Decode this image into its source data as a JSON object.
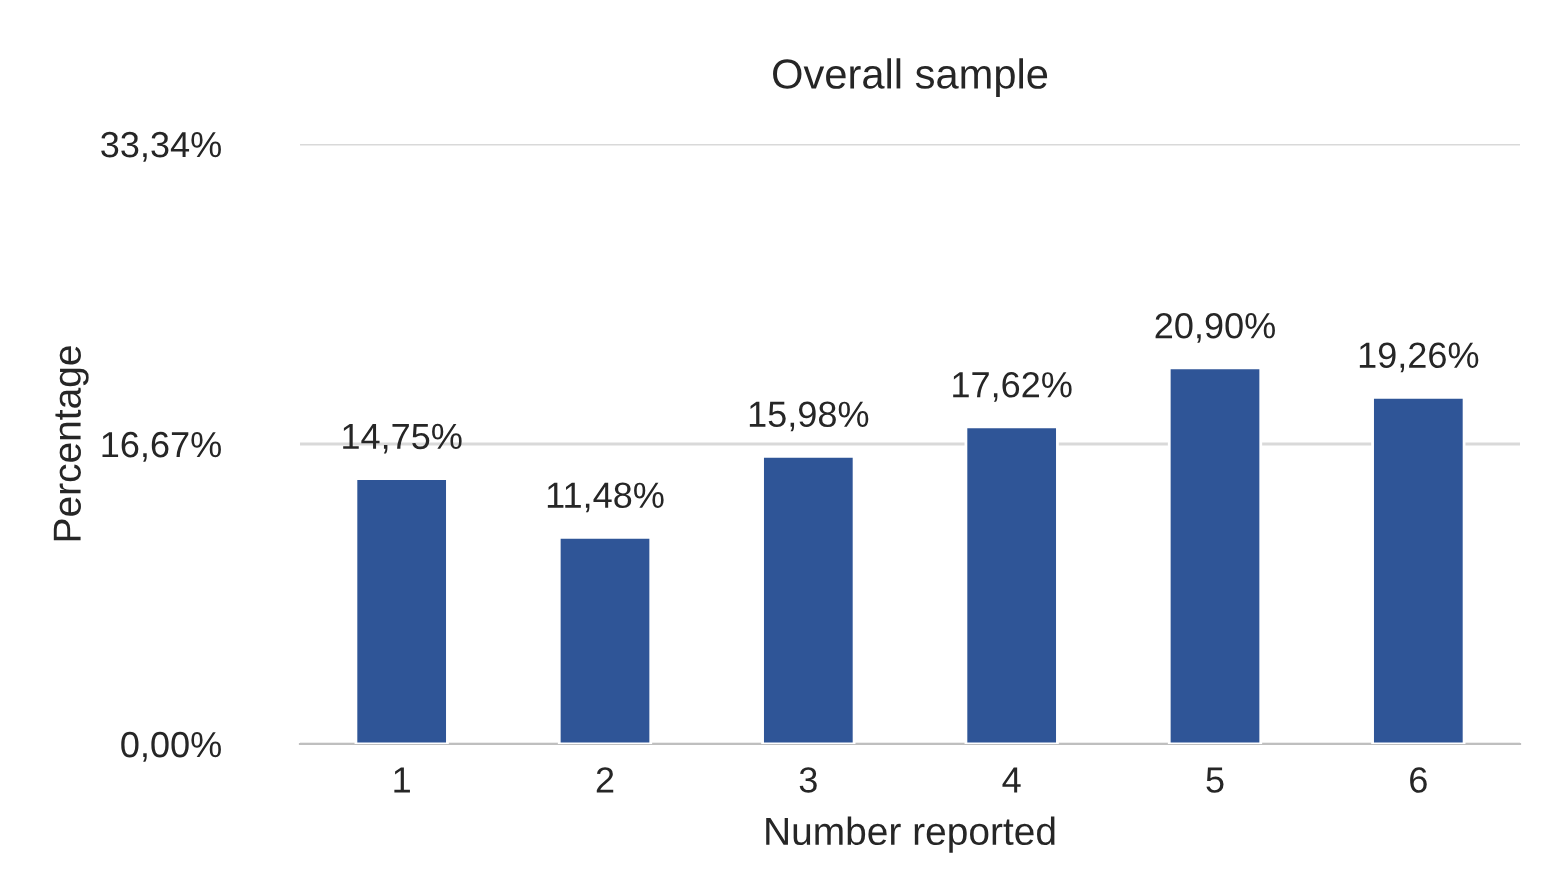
{
  "chart_data": {
    "type": "bar",
    "title": "Overall sample",
    "xlabel": "Number reported",
    "ylabel": "Percentage",
    "categories": [
      "1",
      "2",
      "3",
      "4",
      "5",
      "6"
    ],
    "values": [
      14.75,
      11.48,
      15.98,
      17.62,
      20.9,
      19.26
    ],
    "value_labels": [
      "14,75%",
      "11,48%",
      "15,98%",
      "17,62%",
      "20,90%",
      "19,26%"
    ],
    "color": "#2f5597",
    "ylim": [
      0,
      33.34
    ],
    "yticks": [
      {
        "value": 0,
        "label": "0,00%"
      },
      {
        "value": 16.67,
        "label": "16,67%"
      },
      {
        "value": 33.34,
        "label": "33,34%"
      }
    ],
    "grid": "y",
    "legend": false
  }
}
